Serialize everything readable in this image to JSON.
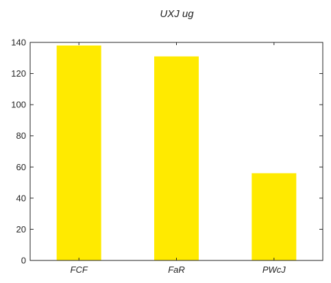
{
  "chart_data": {
    "type": "bar",
    "title": "UXJ ug",
    "xlabel": "",
    "ylabel": "",
    "categories": [
      "FCF",
      "FaR",
      "PWcJ"
    ],
    "values": [
      138,
      131,
      56
    ],
    "ylim": [
      0,
      140
    ],
    "yticks": [
      0,
      20,
      40,
      60,
      80,
      100,
      120,
      140
    ],
    "bar_color": "#ffea00",
    "grid": false,
    "legend": "none"
  }
}
